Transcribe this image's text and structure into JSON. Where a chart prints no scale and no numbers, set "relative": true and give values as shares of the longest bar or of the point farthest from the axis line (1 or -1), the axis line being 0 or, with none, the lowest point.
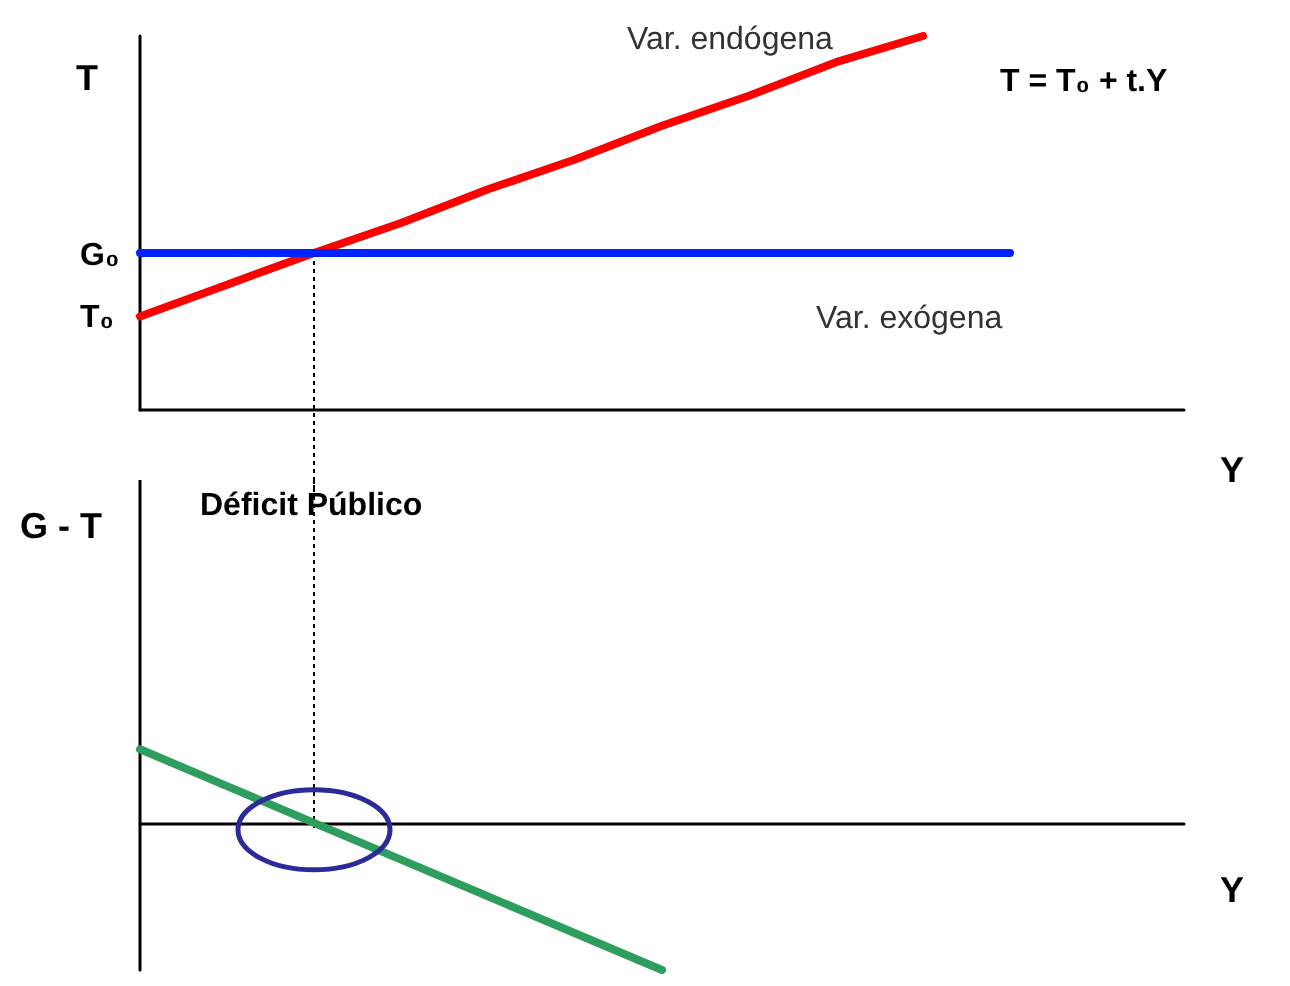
{
  "chart_data": [
    {
      "type": "line",
      "categories": [
        null,
        null,
        null,
        null,
        null,
        null,
        null,
        null,
        null,
        null,
        null,
        null,
        null
      ],
      "ylabel": "T",
      "xlabel": "Y",
      "relative": true,
      "annotations": [
        "T = T₀ + t.Y",
        "G₀",
        "T₀"
      ],
      "series": [
        {
          "name": "Var. endógena",
          "color": "#ff0000",
          "values": [
            0.25,
            0.335,
            0.42,
            0.5,
            0.59,
            0.67,
            0.76,
            0.84,
            0.93,
            1.0,
            null,
            null,
            null
          ]
        },
        {
          "name": "Var. exógena",
          "color": "#0022ff",
          "values": [
            0.42,
            0.42,
            0.42,
            0.42,
            0.42,
            0.42,
            0.42,
            0.42,
            0.42,
            0.42,
            0.42,
            null,
            null
          ]
        }
      ]
    },
    {
      "type": "line",
      "categories": [
        null,
        null,
        null,
        null,
        null,
        null,
        null,
        null,
        null,
        null,
        null,
        null,
        null
      ],
      "ylabel": "G - T",
      "xlabel": "Y",
      "relative": true,
      "annotations": [
        "Déficit Público"
      ],
      "series": [
        {
          "color": "#2e9e5e",
          "values": [
            0.5,
            0.25,
            0,
            -0.25,
            -0.5,
            -0.75,
            -1,
            null,
            null,
            null,
            null,
            null,
            null
          ]
        }
      ]
    }
  ]
}
